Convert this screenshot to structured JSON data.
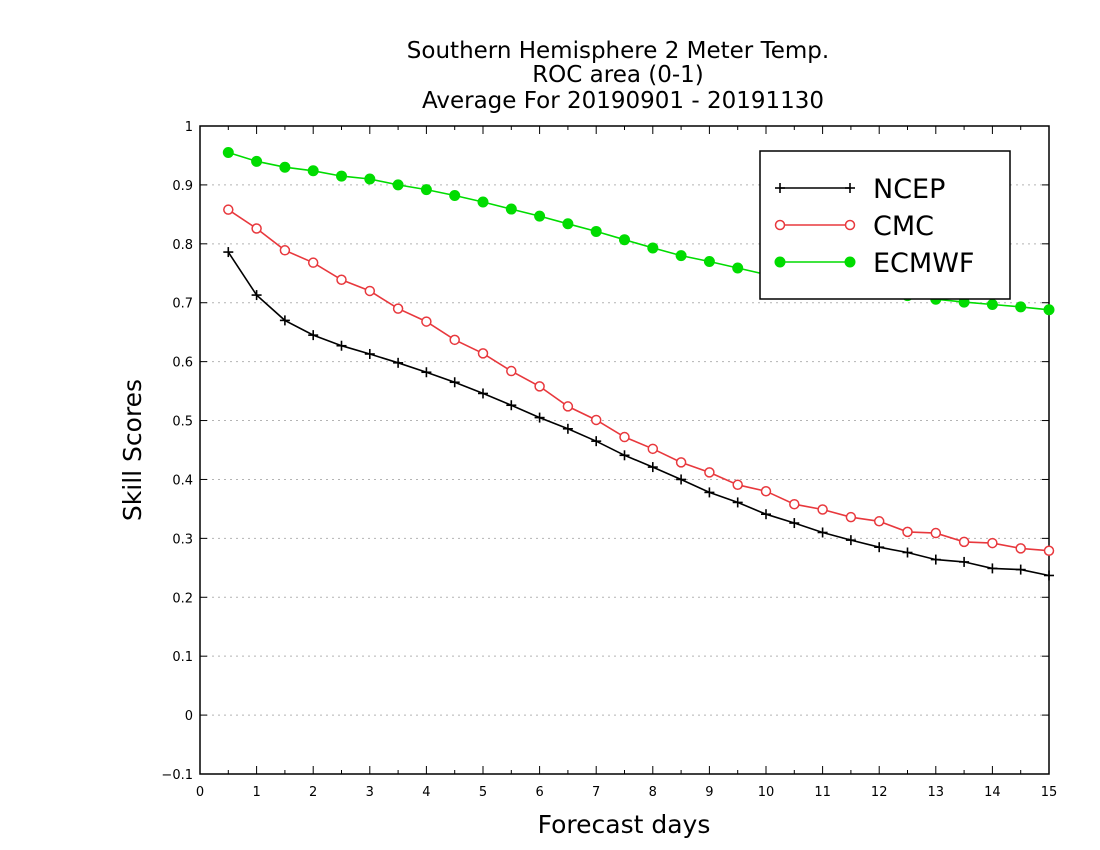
{
  "chart_data": {
    "type": "line",
    "title_lines": [
      "Southern Hemisphere 2 Meter Temp.",
      "ROC area (0-1)",
      "Average For 20190901 - 20191130"
    ],
    "xlabel": "Forecast days",
    "ylabel": "Skill Scores",
    "xlim": [
      0,
      15
    ],
    "ylim": [
      -0.1,
      1
    ],
    "x_ticks": [
      "0",
      "1",
      "2",
      "3",
      "4",
      "5",
      "6",
      "7",
      "8",
      "9",
      "10",
      "11",
      "12",
      "13",
      "14",
      "15"
    ],
    "y_ticks": [
      "−0.1",
      "0",
      "0.1",
      "0.2",
      "0.3",
      "0.4",
      "0.5",
      "0.6",
      "0.7",
      "0.8",
      "0.9",
      "1"
    ],
    "grid": "horizontal dotted",
    "legend_position": "top-right",
    "x": [
      0.5,
      1,
      1.5,
      2,
      2.5,
      3,
      3.5,
      4,
      4.5,
      5,
      5.5,
      6,
      6.5,
      7,
      7.5,
      8,
      8.5,
      9,
      9.5,
      10,
      10.5,
      11,
      11.5,
      12,
      12.5,
      13,
      13.5,
      14,
      14.5,
      15
    ],
    "series": [
      {
        "name": "NCEP",
        "color": "#000000",
        "marker": "plus",
        "values": [
          0.786,
          0.713,
          0.67,
          0.645,
          0.627,
          0.613,
          0.598,
          0.582,
          0.565,
          0.546,
          0.526,
          0.505,
          0.486,
          0.465,
          0.441,
          0.421,
          0.4,
          0.378,
          0.361,
          0.341,
          0.326,
          0.31,
          0.297,
          0.285,
          0.276,
          0.264,
          0.26,
          0.249,
          0.247,
          0.237
        ]
      },
      {
        "name": "CMC",
        "color": "#e8383d",
        "marker": "open-circle",
        "values": [
          0.858,
          0.826,
          0.789,
          0.768,
          0.739,
          0.72,
          0.69,
          0.668,
          0.637,
          0.614,
          0.584,
          0.558,
          0.524,
          0.501,
          0.472,
          0.452,
          0.429,
          0.412,
          0.391,
          0.38,
          0.358,
          0.349,
          0.336,
          0.329,
          0.311,
          0.309,
          0.294,
          0.292,
          0.283,
          0.279
        ]
      },
      {
        "name": "ECMWF",
        "color": "#00dc00",
        "marker": "filled-circle",
        "values": [
          0.955,
          0.94,
          0.93,
          0.924,
          0.915,
          0.91,
          0.9,
          0.892,
          0.882,
          0.871,
          0.859,
          0.847,
          0.834,
          0.821,
          0.807,
          0.793,
          0.78,
          0.77,
          0.759,
          0.748,
          0.74,
          0.733,
          0.726,
          0.719,
          0.712,
          0.706,
          0.701,
          0.697,
          0.693,
          0.688
        ]
      }
    ]
  }
}
